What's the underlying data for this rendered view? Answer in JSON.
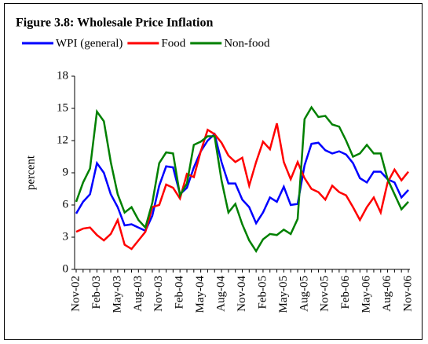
{
  "chart_data": {
    "type": "line",
    "title": "Figure 3.8: Wholesale Price Inflation",
    "ylabel": "percent",
    "categories": [
      "Nov-02",
      null,
      null,
      "Feb-03",
      null,
      null,
      "May-03",
      null,
      null,
      "Aug-03",
      null,
      null,
      "Nov-03",
      null,
      null,
      "Feb-04",
      null,
      null,
      "May-04",
      null,
      null,
      "Aug-04",
      null,
      null,
      "Nov-04",
      null,
      null,
      "Feb-05",
      null,
      null,
      "May-05",
      null,
      null,
      "Aug-05",
      null,
      null,
      "Nov-05",
      null,
      null,
      "Feb-06",
      null,
      null,
      "May-06",
      null,
      null,
      "Aug-06",
      null,
      null,
      "Nov-06"
    ],
    "series": [
      {
        "name": "WPI (general)",
        "color": "#0000ff",
        "values": [
          5.2,
          6.3,
          7.0,
          9.9,
          9.0,
          7.0,
          5.8,
          4.1,
          4.2,
          3.9,
          3.6,
          5.0,
          7.8,
          9.6,
          9.5,
          7.0,
          7.6,
          9.5,
          11.0,
          12.0,
          12.6,
          10.0,
          8.0,
          8.0,
          6.5,
          5.8,
          4.3,
          5.3,
          6.7,
          6.3,
          7.7,
          6.0,
          6.1,
          9.7,
          11.7,
          11.8,
          11.1,
          10.8,
          11.0,
          10.7,
          9.9,
          8.5,
          8.1,
          9.1,
          9.1,
          8.4,
          8.1,
          6.7,
          7.4
        ]
      },
      {
        "name": "Food",
        "color": "#ff0000",
        "values": [
          3.5,
          3.8,
          3.9,
          3.2,
          2.7,
          3.3,
          4.6,
          2.3,
          1.9,
          2.7,
          3.5,
          5.8,
          6.0,
          7.9,
          7.6,
          6.6,
          8.9,
          8.6,
          11.0,
          13.0,
          12.6,
          11.8,
          10.6,
          10.0,
          10.4,
          7.8,
          10.0,
          11.9,
          11.2,
          13.6,
          10.0,
          8.4,
          10.0,
          8.5,
          7.5,
          7.2,
          6.5,
          7.8,
          7.2,
          6.9,
          5.8,
          4.6,
          5.8,
          6.7,
          5.3,
          8.1,
          9.3,
          8.3,
          9.1
        ]
      },
      {
        "name": "Non-food",
        "color": "#008000",
        "values": [
          6.3,
          8.1,
          9.4,
          14.7,
          13.8,
          10.0,
          7.0,
          5.3,
          5.8,
          4.6,
          3.9,
          6.2,
          9.9,
          10.9,
          10.8,
          6.9,
          8.0,
          11.6,
          11.9,
          12.4,
          12.4,
          8.3,
          5.3,
          6.1,
          4.2,
          2.7,
          1.7,
          2.8,
          3.3,
          3.2,
          3.7,
          3.3,
          4.7,
          14.0,
          15.1,
          14.2,
          14.3,
          13.5,
          13.3,
          12.0,
          10.5,
          10.8,
          11.6,
          10.8,
          10.8,
          8.4,
          7.0,
          5.6,
          6.3
        ]
      }
    ],
    "ylim": [
      0,
      18
    ],
    "yticks": [
      0,
      3,
      6,
      9,
      12,
      15,
      18
    ],
    "grid": false,
    "legend": "top"
  }
}
